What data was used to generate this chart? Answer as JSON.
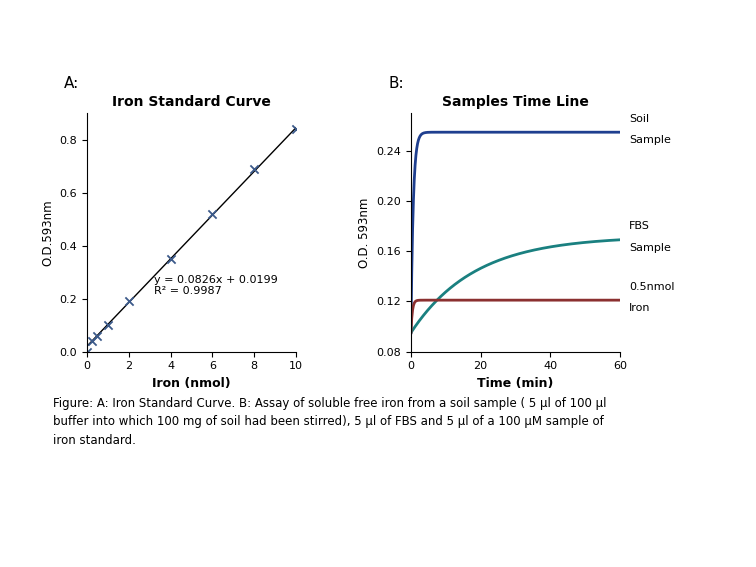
{
  "panel_A_label": "A:",
  "panel_B_label": "B:",
  "plot_A_title": "Iron Standard Curve",
  "plot_B_title": "Samples Time Line",
  "plot_A_xlabel": "Iron (nmol)",
  "plot_A_ylabel": "O.D.593nm",
  "plot_B_xlabel": "Time (min)",
  "plot_B_ylabel": "O.D. 593nm",
  "scatter_x": [
    0,
    0.25,
    0.5,
    1.0,
    2.0,
    4.0,
    6.0,
    8.0,
    10.0
  ],
  "scatter_y": [
    0.0,
    0.04,
    0.06,
    0.1,
    0.19,
    0.35,
    0.52,
    0.69,
    0.84
  ],
  "scatter_color": "#3C5A8A",
  "line_slope": 0.0826,
  "line_intercept": 0.0199,
  "equation_text": "y = 0.0826x + 0.0199",
  "r2_text": "R² = 0.9987",
  "plot_A_xlim": [
    0,
    10
  ],
  "plot_A_ylim": [
    0,
    0.9
  ],
  "plot_A_xticks": [
    0,
    2,
    4,
    6,
    8,
    10
  ],
  "plot_A_yticks": [
    0,
    0.2,
    0.4,
    0.6,
    0.8
  ],
  "soil_color": "#1F3F8F",
  "fbs_color": "#1A8080",
  "iron_color": "#8B3030",
  "soil_label_1": "Soil",
  "soil_label_2": "Sample",
  "fbs_label_1": "FBS",
  "fbs_label_2": "Sample",
  "iron_label_1": "0.5nmol",
  "iron_label_2": "Iron",
  "plot_B_xlim": [
    0,
    60
  ],
  "plot_B_ylim": [
    0.08,
    0.27
  ],
  "plot_B_xticks": [
    0,
    20,
    40,
    60
  ],
  "plot_B_yticks": [
    0.08,
    0.12,
    0.16,
    0.2,
    0.24
  ],
  "caption": "Figure: A: Iron Standard Curve. B: Assay of soluble free iron from a soil sample ( 5 μl of 100 μl\nbuffer into which 100 mg of soil had been stirred), 5 μl of FBS and 5 μl of a 100 μM sample of\niron standard.",
  "bg_color": "#FFFFFF"
}
